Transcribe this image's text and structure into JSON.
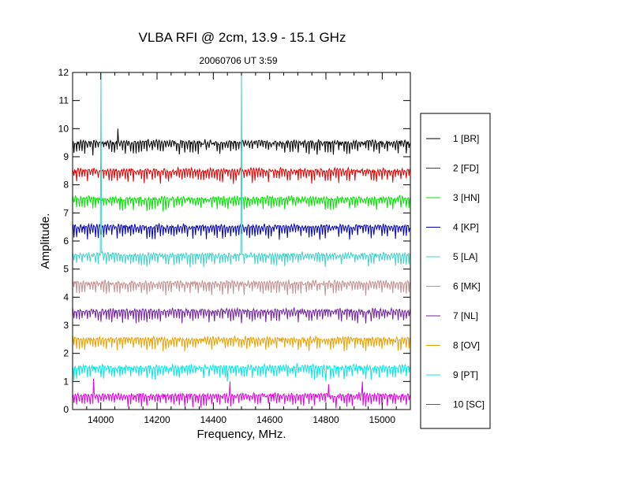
{
  "chart_data": {
    "type": "line",
    "title": "VLBA RFI @ 2cm, 13.9 - 15.1 GHz",
    "subtitle": "20060706   UT 3:59",
    "xlabel": "Frequency, MHz.",
    "ylabel": "Amplitude.",
    "xlim": [
      13900,
      15100
    ],
    "ylim": [
      0,
      12
    ],
    "x_ticks": [
      "14000",
      "14200",
      "14400",
      "14600",
      "14800",
      "15000"
    ],
    "y_ticks": [
      "0",
      "1",
      "2",
      "3",
      "4",
      "5",
      "6",
      "7",
      "8",
      "9",
      "10",
      "11",
      "12"
    ],
    "legend_position": "right",
    "series": [
      {
        "name": "1 [BR]",
        "color": "#000000",
        "baseline": 9.5,
        "spikes": [
          [
            14060,
            10.0
          ]
        ]
      },
      {
        "name": "2 [FD]",
        "color": "#e00000",
        "baseline": 8.5,
        "spikes": []
      },
      {
        "name": "3 [HN]",
        "color": "#00e000",
        "baseline": 7.5,
        "spikes": []
      },
      {
        "name": "4 [KP]",
        "color": "#0000b0",
        "baseline": 6.5,
        "spikes": []
      },
      {
        "name": "5 [LA]",
        "color": "#40d0c8",
        "baseline": 5.5,
        "spikes": [
          [
            14000,
            12.0
          ],
          [
            14500,
            12.0
          ]
        ]
      },
      {
        "name": "6 [MK]",
        "color": "#c09090",
        "baseline": 4.5,
        "spikes": []
      },
      {
        "name": "7 [NL]",
        "color": "#7020a0",
        "baseline": 3.5,
        "spikes": []
      },
      {
        "name": "8 [OV]",
        "color": "#e8a000",
        "baseline": 2.5,
        "spikes": []
      },
      {
        "name": "9 [PT]",
        "color": "#00e8e8",
        "baseline": 1.5,
        "spikes": [
          [
            14450,
            1.0
          ],
          [
            14800,
            1.0
          ]
        ]
      },
      {
        "name": "10 [SC]",
        "color": "#e000e0",
        "baseline": 0.5,
        "spikes": [
          [
            13975,
            1.1
          ],
          [
            14460,
            1.0
          ],
          [
            14810,
            0.9
          ],
          [
            14930,
            1.0
          ]
        ]
      }
    ]
  }
}
